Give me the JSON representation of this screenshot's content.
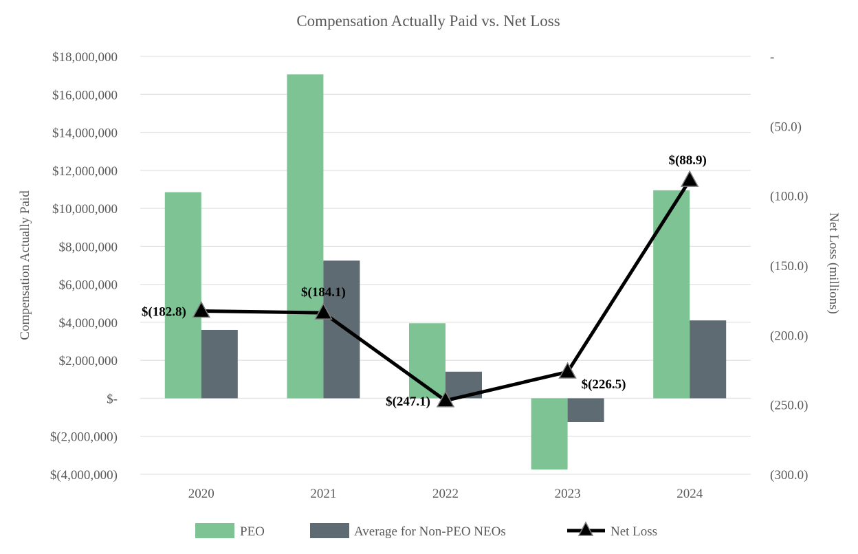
{
  "chart_data": {
    "type": "bar",
    "title": "Compensation Actually Paid vs. Net Loss",
    "categories": [
      "2020",
      "2021",
      "2022",
      "2023",
      "2024"
    ],
    "ylabel": "Compensation Actually Paid",
    "y2label": "Net Loss (millions)",
    "ylim": [
      -4000000,
      18000000
    ],
    "y2lim": [
      -300,
      0
    ],
    "yticks": [
      {
        "value": 18000000,
        "label": "$18,000,000"
      },
      {
        "value": 16000000,
        "label": "$16,000,000"
      },
      {
        "value": 14000000,
        "label": "$14,000,000"
      },
      {
        "value": 12000000,
        "label": "$12,000,000"
      },
      {
        "value": 10000000,
        "label": "$10,000,000"
      },
      {
        "value": 8000000,
        "label": "$8,000,000"
      },
      {
        "value": 6000000,
        "label": "$6,000,000"
      },
      {
        "value": 4000000,
        "label": "$4,000,000"
      },
      {
        "value": 2000000,
        "label": "$2,000,000"
      },
      {
        "value": 0,
        "label": "$-"
      },
      {
        "value": -2000000,
        "label": "$(2,000,000)"
      },
      {
        "value": -4000000,
        "label": "$(4,000,000)"
      }
    ],
    "y2ticks": [
      {
        "value": 0,
        "label": "-"
      },
      {
        "value": -50,
        "label": "(50.0)"
      },
      {
        "value": -100,
        "label": "(100.0)"
      },
      {
        "value": -150,
        "label": "(150.0)"
      },
      {
        "value": -200,
        "label": "(200.0)"
      },
      {
        "value": -250,
        "label": "(250.0)"
      },
      {
        "value": -300,
        "label": "(300.0)"
      }
    ],
    "series": [
      {
        "name": "PEO",
        "kind": "bar",
        "axis": "left",
        "color": "#7dc393",
        "values": [
          10850000,
          17050000,
          3950000,
          -3750000,
          10950000
        ]
      },
      {
        "name": "Average for Non-PEO NEOs",
        "kind": "bar",
        "axis": "left",
        "color": "#5f6b73",
        "values": [
          3600000,
          7250000,
          1400000,
          -1250000,
          4100000
        ]
      },
      {
        "name": "Net Loss",
        "kind": "line",
        "axis": "right",
        "color": "#000000",
        "marker": "triangle",
        "values": [
          -182.8,
          -184.1,
          -247.1,
          -226.5,
          -88.9
        ],
        "labels": [
          "$(182.8)",
          "$(184.1)",
          "$(247.1)",
          "$(226.5)",
          "$(88.9)"
        ]
      }
    ],
    "grid": true,
    "legend": "bottom"
  }
}
